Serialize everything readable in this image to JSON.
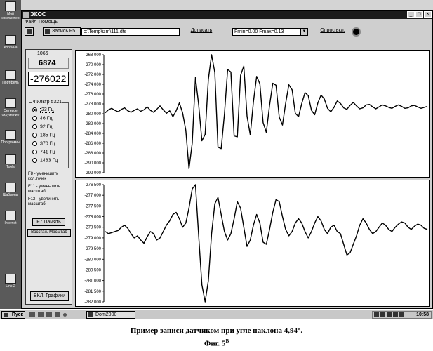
{
  "desktop": {
    "icons": [
      {
        "label": "Мой компьютер"
      },
      {
        "label": "Корзина"
      },
      {
        "label": "Портфель"
      },
      {
        "label": "Сетевое окружение"
      },
      {
        "label": "Программы"
      },
      {
        "label": "Tools"
      },
      {
        "label": "Шаблоны"
      },
      {
        "label": "Internet"
      },
      {
        "label": "Link-2"
      }
    ]
  },
  "window": {
    "title": "ЭКОС",
    "minimize_glyph": "_",
    "maximize_glyph": "□",
    "close_glyph": "×"
  },
  "menu": {
    "file": "Файл",
    "help": "Помощь"
  },
  "toolbar": {
    "record_label": "Запись F5",
    "path": "c:\\Temp\\izm\\111.dts",
    "append_label": "Дописать",
    "range_select": "Fmin=0.00 Fmax=0.13",
    "poll_label": "Опрос вкл."
  },
  "panel": {
    "counter": "1066",
    "value1": "6874",
    "value2": "-276022",
    "filter_caption": "Фильтр 5321",
    "filters": [
      {
        "label": "23 Гц",
        "selected": true
      },
      {
        "label": "46 Гц",
        "selected": false
      },
      {
        "label": "92 Гц",
        "selected": false
      },
      {
        "label": "185 Гц",
        "selected": false
      },
      {
        "label": "370 Гц",
        "selected": false
      },
      {
        "label": "741 Гц",
        "selected": false
      },
      {
        "label": "1483 Гц",
        "selected": false
      }
    ],
    "hint_f8": "F8 - уменьшить кол.точек",
    "hint_f11": "F11 - уменьшить масштаб",
    "hint_f12": "F12 - увеличить масштаб",
    "memory_button": "F7 Память",
    "restore_button": "Восстан. Масштаб",
    "graphs_button": "ВКЛ. Графики"
  },
  "chart_data": [
    {
      "type": "line",
      "title": "",
      "xlabel": "",
      "ylabel": "",
      "ylim": [
        -292000,
        -268000
      ],
      "yticks": [
        "-268 000",
        "-270 000",
        "-272 000",
        "-274 000",
        "-276 000",
        "-278 000",
        "-280 000",
        "-282 000",
        "-284 000",
        "-286 000",
        "-288 000",
        "-290 000",
        "-292 000"
      ],
      "ytick_values": [
        -268000,
        -270000,
        -272000,
        -274000,
        -276000,
        -278000,
        -280000,
        -282000,
        -284000,
        -286000,
        -288000,
        -290000,
        -292000
      ],
      "grid": false,
      "series": [
        {
          "x": [
            0,
            1,
            2,
            3,
            4,
            5,
            6,
            7,
            8,
            9,
            10,
            11,
            12,
            13,
            14,
            15,
            16,
            17,
            18,
            19,
            20,
            21,
            22,
            23,
            24,
            25,
            26,
            27,
            28,
            29,
            30,
            31,
            32,
            33,
            34,
            35,
            36,
            37,
            38,
            39,
            40,
            41,
            42,
            43,
            44,
            45,
            46,
            47,
            48,
            49,
            50,
            51,
            52,
            53,
            54,
            55,
            56,
            57,
            58,
            59,
            60,
            61,
            62,
            63,
            64,
            65,
            66,
            67,
            68,
            69,
            70,
            71,
            72,
            73,
            74,
            75,
            76,
            77,
            78,
            79,
            80,
            81,
            82,
            83,
            84,
            85,
            86,
            87,
            88,
            89,
            90,
            91,
            92,
            93,
            94,
            95,
            96,
            97,
            98,
            99,
            100
          ],
          "values": [
            -279800,
            -279200,
            -278900,
            -279300,
            -279600,
            -279100,
            -278800,
            -279400,
            -279700,
            -279300,
            -279000,
            -279500,
            -279200,
            -278600,
            -279300,
            -279700,
            -279100,
            -278400,
            -279200,
            -279900,
            -279400,
            -280600,
            -279400,
            -277800,
            -279800,
            -283400,
            -291200,
            -286000,
            -272600,
            -278200,
            -285500,
            -284200,
            -273000,
            -268000,
            -271600,
            -286800,
            -287100,
            -280100,
            -271000,
            -271500,
            -284500,
            -284700,
            -272200,
            -270300,
            -280500,
            -284300,
            -277600,
            -272400,
            -273900,
            -281800,
            -283800,
            -278300,
            -273800,
            -274200,
            -280700,
            -282300,
            -277900,
            -274100,
            -275100,
            -279900,
            -280600,
            -277900,
            -275700,
            -276300,
            -279300,
            -280200,
            -277800,
            -276200,
            -277000,
            -278900,
            -279600,
            -278700,
            -277400,
            -277900,
            -278800,
            -279100,
            -278300,
            -277700,
            -278400,
            -279000,
            -278800,
            -278200,
            -278100,
            -278600,
            -279000,
            -278600,
            -278200,
            -278400,
            -278700,
            -278900,
            -278500,
            -278200,
            -278500,
            -278900,
            -278800,
            -278400,
            -278300,
            -278600,
            -278900,
            -278700,
            -278500
          ]
        }
      ]
    },
    {
      "type": "line",
      "title": "",
      "xlabel": "",
      "ylabel": "",
      "ylim": [
        -282000,
        -276500
      ],
      "yticks": [
        "-276 500",
        "-277 000",
        "-277 500",
        "-278 000",
        "-278 500",
        "-279 000",
        "-279 500",
        "-280 000",
        "-280 500",
        "-281 000",
        "-281 500",
        "-282 000"
      ],
      "ytick_values": [
        -276500,
        -277000,
        -277500,
        -278000,
        -278500,
        -279000,
        -279500,
        -280000,
        -280500,
        -281000,
        -281500,
        -282000
      ],
      "grid": false,
      "series": [
        {
          "x": [
            0,
            1,
            2,
            3,
            4,
            5,
            6,
            7,
            8,
            9,
            10,
            11,
            12,
            13,
            14,
            15,
            16,
            17,
            18,
            19,
            20,
            21,
            22,
            23,
            24,
            25,
            26,
            27,
            28,
            29,
            30,
            31,
            32,
            33,
            34,
            35,
            36,
            37,
            38,
            39,
            40,
            41,
            42,
            43,
            44,
            45,
            46,
            47,
            48,
            49,
            50,
            51,
            52,
            53,
            54,
            55,
            56,
            57,
            58,
            59,
            60,
            61,
            62,
            63,
            64,
            65,
            66,
            67,
            68,
            69,
            70,
            71,
            72,
            73,
            74,
            75,
            76,
            77,
            78,
            79,
            80,
            81,
            82,
            83,
            84,
            85,
            86,
            87,
            88,
            89,
            90,
            91,
            92,
            93,
            94,
            95,
            96,
            97,
            98,
            99,
            100
          ],
          "values": [
            -278700,
            -278800,
            -278750,
            -278700,
            -278650,
            -278500,
            -278400,
            -278550,
            -278800,
            -279000,
            -278900,
            -279100,
            -279250,
            -278950,
            -278700,
            -278800,
            -279100,
            -279000,
            -278700,
            -278400,
            -278200,
            -277900,
            -277800,
            -278100,
            -278500,
            -278300,
            -277600,
            -276700,
            -276500,
            -278900,
            -281200,
            -282000,
            -281000,
            -278800,
            -277400,
            -277100,
            -277900,
            -278700,
            -279100,
            -278800,
            -278100,
            -277300,
            -277600,
            -278500,
            -279400,
            -279100,
            -278400,
            -277900,
            -278300,
            -279200,
            -279300,
            -278600,
            -277800,
            -277200,
            -277300,
            -278000,
            -278600,
            -278900,
            -278700,
            -278300,
            -278100,
            -278300,
            -278700,
            -279000,
            -278700,
            -278300,
            -278000,
            -278200,
            -278600,
            -278800,
            -278500,
            -278400,
            -278700,
            -278800,
            -279300,
            -279800,
            -279700,
            -279300,
            -278900,
            -278400,
            -278100,
            -278300,
            -278600,
            -278800,
            -278700,
            -278500,
            -278300,
            -278400,
            -278600,
            -278700,
            -278500,
            -278350,
            -278250,
            -278300,
            -278500,
            -278600,
            -278450,
            -278350,
            -278400,
            -278550,
            -278600
          ]
        }
      ]
    }
  ],
  "taskbar": {
    "start_label": "Пуск",
    "task_label": "Dom2000",
    "clock": "10:58"
  },
  "caption": {
    "line1": "Пример записи датчиком при угле наклона 4,94°.",
    "line2": "Фиг. 5",
    "superscript": "В"
  }
}
